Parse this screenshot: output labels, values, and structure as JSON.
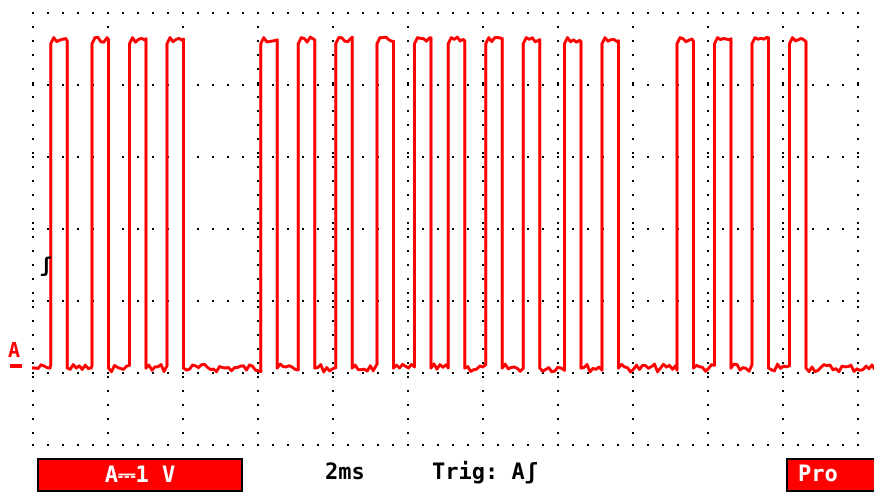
{
  "screen": {
    "channel_marker": "A",
    "trigger_marker": "ʃ"
  },
  "status": {
    "channel_scale": "A⎓1 V",
    "timebase": "2ms",
    "trigger": "Trig: Aʃ",
    "probe": "Pro"
  },
  "colors": {
    "trace": "#ff0000",
    "grid": "#000000",
    "background": "#ffffff"
  },
  "chart_data": {
    "type": "line",
    "title": "",
    "xlabel": "",
    "ylabel": "",
    "x_unit_per_div": "2ms",
    "y_unit_per_div": "1 V",
    "grid": true,
    "grid_divisions": {
      "x": 11,
      "y": 6
    },
    "series": [
      {
        "name": "",
        "baseline_div": 0,
        "high_div": 4.8,
        "pulses_start_div": [
          0.25,
          0.8,
          1.3,
          1.8,
          3.05,
          3.55,
          4.05,
          4.6,
          5.1,
          5.55,
          6.05,
          6.55,
          7.1,
          7.6,
          8.6,
          9.1,
          9.6,
          10.1
        ],
        "pulse_width_div": 0.22
      }
    ]
  }
}
